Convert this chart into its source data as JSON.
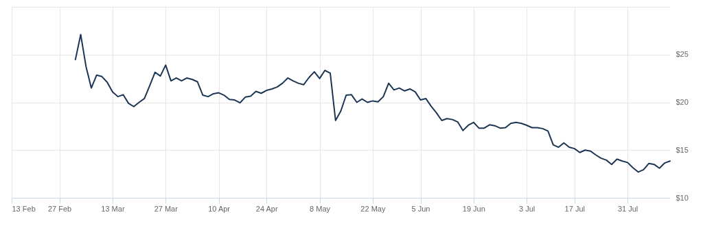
{
  "chart_data": {
    "type": "line",
    "categories": [
      "13 Feb",
      null,
      null,
      null,
      null,
      null,
      null,
      null,
      null,
      "27 Feb",
      null,
      null,
      null,
      null,
      null,
      null,
      null,
      null,
      null,
      "13 Mar",
      null,
      null,
      null,
      null,
      null,
      null,
      null,
      null,
      null,
      "27 Mar",
      null,
      null,
      null,
      null,
      null,
      null,
      null,
      null,
      null,
      "10 Apr",
      null,
      null,
      null,
      null,
      null,
      null,
      null,
      null,
      "24 Apr",
      null,
      null,
      null,
      null,
      null,
      null,
      null,
      null,
      null,
      "8 May",
      null,
      null,
      null,
      null,
      null,
      null,
      null,
      null,
      null,
      "22 May",
      null,
      null,
      null,
      null,
      null,
      null,
      null,
      null,
      "5 Jun",
      null,
      null,
      null,
      null,
      null,
      null,
      null,
      null,
      null,
      "19 Jun",
      null,
      null,
      null,
      null,
      null,
      null,
      null,
      null,
      null,
      "3 Jul",
      null,
      null,
      null,
      null,
      null,
      null,
      null,
      null,
      "17 Jul",
      null,
      null,
      null,
      null,
      null,
      null,
      null,
      null,
      null,
      "31 Jul",
      null,
      null,
      null,
      null,
      null,
      null,
      null,
      null
    ],
    "series": [
      {
        "color": "#1c3553",
        "values": [
          null,
          null,
          null,
          null,
          null,
          null,
          null,
          null,
          null,
          null,
          null,
          null,
          24.47,
          27.1,
          23.75,
          21.5,
          22.85,
          22.7,
          22.1,
          21.1,
          20.6,
          20.8,
          19.9,
          19.55,
          20.0,
          20.4,
          21.75,
          23.15,
          22.75,
          23.9,
          22.25,
          22.55,
          22.25,
          22.55,
          22.4,
          22.15,
          20.75,
          20.6,
          20.9,
          21.0,
          20.75,
          20.3,
          20.25,
          19.95,
          20.55,
          20.65,
          21.15,
          20.95,
          21.25,
          21.4,
          21.6,
          22.0,
          22.55,
          22.25,
          22.0,
          21.85,
          22.6,
          23.2,
          22.5,
          23.35,
          23.05,
          18.1,
          19.1,
          20.75,
          20.8,
          20.0,
          20.35,
          20.0,
          20.15,
          20.05,
          20.6,
          22.0,
          21.3,
          21.5,
          21.2,
          21.4,
          21.1,
          20.25,
          20.4,
          19.6,
          18.9,
          18.1,
          18.3,
          18.2,
          17.95,
          17.05,
          17.6,
          17.9,
          17.3,
          17.3,
          17.65,
          17.55,
          17.3,
          17.35,
          17.8,
          17.9,
          17.8,
          17.6,
          17.35,
          17.35,
          17.25,
          17.0,
          15.55,
          15.3,
          15.75,
          15.3,
          15.15,
          14.75,
          15.0,
          14.9,
          14.5,
          14.15,
          13.95,
          13.5,
          14.05,
          13.85,
          13.7,
          13.15,
          12.7,
          12.95,
          13.6,
          13.5,
          13.1,
          13.65,
          13.85
        ]
      }
    ],
    "ylim": [
      10,
      30
    ],
    "yticks": [
      {
        "value": 10,
        "label": "$10"
      },
      {
        "value": 15,
        "label": "$15"
      },
      {
        "value": 20,
        "label": "$20"
      },
      {
        "value": 25,
        "label": "$25"
      },
      {
        "value": 30,
        "label": null
      }
    ],
    "grid": true,
    "line_style": "solid",
    "marker": "none"
  }
}
